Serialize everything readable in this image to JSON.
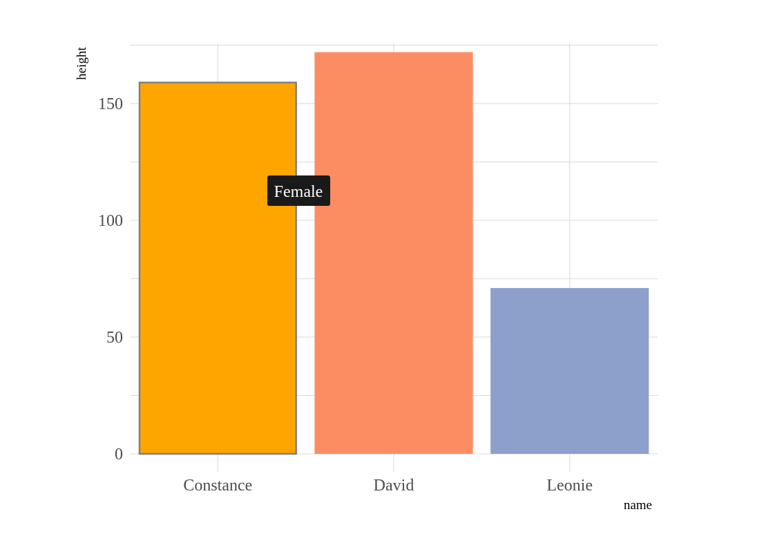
{
  "chart_data": {
    "type": "bar",
    "categories": [
      "Constance",
      "David",
      "Leonie"
    ],
    "values": [
      159,
      172,
      71
    ],
    "colors": [
      "#ffa500",
      "#fc8d62",
      "#8da0cb"
    ],
    "highlight": {
      "category": "Constance",
      "border_color": "#7f7f7f"
    },
    "xlabel": "name",
    "ylabel": "height",
    "ylim": [
      -8,
      176
    ],
    "y_major_ticks": [
      0,
      50,
      100,
      150
    ],
    "y_minor_ticks": [
      25,
      75,
      125,
      175
    ],
    "grid": true,
    "grid_color": "#d9d9d9",
    "tooltip": {
      "text": "Female",
      "background": "#1a1a1a"
    }
  }
}
